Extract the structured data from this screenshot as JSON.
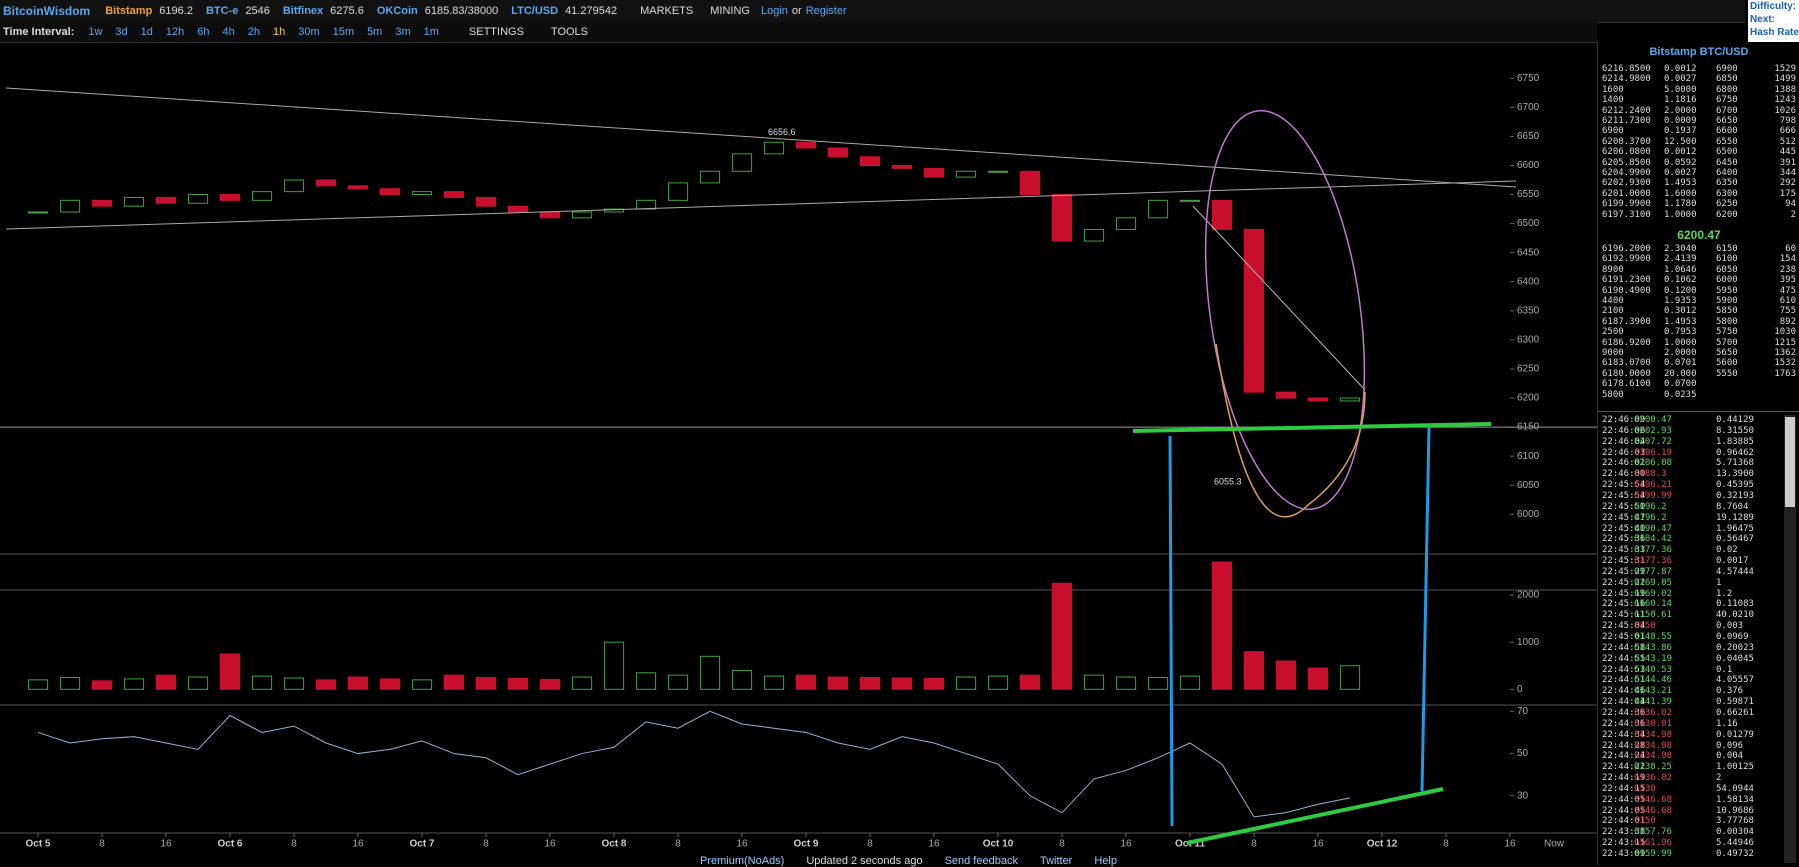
{
  "header": {
    "brand": "BitcoinWisdom",
    "tickers": [
      {
        "name": "Bitstamp",
        "price": "6196.2"
      },
      {
        "name": "BTC-e",
        "price": "2546"
      },
      {
        "name": "Bitfinex",
        "price": "6275.6"
      },
      {
        "name": "OKCoin",
        "price": "6185.83/38000"
      },
      {
        "name": "LTC/USD",
        "price": "41.279542"
      }
    ],
    "menus": [
      "MARKETS",
      "MINING"
    ],
    "login": "Login",
    "or": "or",
    "register": "Register",
    "right": [
      "Difficulty:",
      "Next:",
      "Hash Rate"
    ]
  },
  "toolbar": {
    "label": "Time Interval:",
    "intervals": [
      "1w",
      "3d",
      "1d",
      "12h",
      "6h",
      "4h",
      "2h",
      "1h",
      "30m",
      "15m",
      "5m",
      "3m",
      "1m"
    ],
    "active_interval": 7,
    "menus": [
      "SETTINGS",
      "TOOLS"
    ]
  },
  "chart_data": {
    "type": "candlestick",
    "up_color": "#3fa33f",
    "down_color": "#c8102e",
    "rsi_color": "#8fb4d8",
    "x": [
      0,
      4,
      8,
      12,
      16,
      20,
      24,
      28,
      32,
      36,
      40,
      44,
      48,
      52,
      56,
      60,
      64,
      68,
      72,
      76,
      80,
      84,
      88,
      92,
      96,
      100,
      104,
      108,
      112,
      116,
      120,
      124,
      128,
      132,
      136,
      140,
      144,
      148,
      152,
      156,
      160,
      164
    ],
    "values": [
      6520,
      6540,
      6530,
      6545,
      6535,
      6550,
      6540,
      6555,
      6575,
      6565,
      6560,
      6550,
      6555,
      6545,
      6530,
      6520,
      6510,
      6520,
      6525,
      6540,
      6570,
      6590,
      6620,
      6640,
      6630,
      6615,
      6600,
      6595,
      6580,
      6590,
      6590,
      6550,
      6470,
      6490,
      6510,
      6540,
      6540,
      6490,
      6210,
      6200,
      6195,
      6200
    ],
    "volume": [
      200,
      250,
      180,
      220,
      300,
      260,
      750,
      280,
      240,
      200,
      260,
      220,
      200,
      300,
      250,
      230,
      210,
      260,
      1000,
      350,
      300,
      700,
      400,
      280,
      300,
      260,
      250,
      240,
      230,
      260,
      280,
      300,
      2250,
      300,
      260,
      250,
      280,
      2700,
      800,
      600,
      450,
      500
    ],
    "rsi": [
      60,
      55,
      57,
      58,
      55,
      52,
      68,
      60,
      63,
      55,
      50,
      52,
      56,
      50,
      48,
      40,
      45,
      50,
      53,
      65,
      62,
      70,
      64,
      62,
      60,
      55,
      52,
      58,
      55,
      50,
      45,
      30,
      22,
      38,
      42,
      48,
      55,
      45,
      20,
      22,
      26,
      29
    ],
    "xlim": [
      -4.75,
      190.25
    ],
    "xticks": [
      {
        "value": 0,
        "label": "Oct 5"
      },
      8,
      16,
      {
        "value": 24,
        "label": "Oct 6"
      },
      {
        "value": 32,
        "label": "8"
      },
      {
        "value": 40,
        "label": "16"
      },
      {
        "value": 48,
        "label": "Oct 7"
      },
      {
        "value": 56,
        "label": "8"
      },
      {
        "value": 64,
        "label": "16"
      },
      {
        "value": 72,
        "label": "Oct 8"
      },
      {
        "value": 80,
        "label": "8"
      },
      {
        "value": 88,
        "label": "16"
      },
      {
        "value": 96,
        "label": "Oct 9"
      },
      {
        "value": 104,
        "label": "8"
      },
      {
        "value": 112,
        "label": "16"
      },
      {
        "value": 120,
        "label": "Oct 10"
      },
      {
        "value": 128,
        "label": "8"
      },
      {
        "value": 136,
        "label": "16"
      },
      {
        "value": 144,
        "label": "Oct 11"
      },
      {
        "value": 152,
        "label": "8"
      },
      {
        "value": 160,
        "label": "16"
      },
      {
        "value": 168,
        "label": "Oct 12"
      },
      {
        "value": 176,
        "label": "8"
      },
      {
        "value": 184,
        "label": "16"
      }
    ],
    "now_label": "Now",
    "ylim": [
      5930,
      6790
    ],
    "yticks": [
      6000,
      6050,
      6100,
      6150,
      6200,
      6250,
      6300,
      6350,
      6400,
      6450,
      6500,
      6550,
      6600,
      6650,
      6700,
      6750
    ],
    "horizontal_line": 6150,
    "volume_ylim": [
      -100,
      2850
    ],
    "volume_yticks": [
      0,
      1000,
      2000
    ],
    "rsi_ylim": [
      10,
      73
    ],
    "rsi_yticks": [
      30,
      50,
      70
    ],
    "annotations": [
      6656.6,
      6055.3
    ]
  },
  "order_book": {
    "title": "Bitstamp BTC/USD",
    "asks": [
      [
        "6216.8500",
        "0.0012",
        "6900",
        "1529"
      ],
      [
        "6214.9800",
        "0.0027",
        "6850",
        "1499"
      ],
      [
        "1600",
        "5.0000",
        "6800",
        "1388"
      ],
      [
        "1400",
        "1.1816",
        "6750",
        "1243"
      ],
      [
        "6212.2400",
        "2.0000",
        "6700",
        "1026"
      ],
      [
        "6211.7300",
        "0.0009",
        "6650",
        "798"
      ],
      [
        "6900",
        "0.1937",
        "6600",
        "666"
      ],
      [
        "6208.3700",
        "12.500",
        "6550",
        "512"
      ],
      [
        "6206.0800",
        "0.0012",
        "6500",
        "445"
      ],
      [
        "6205.8500",
        "0.0592",
        "6450",
        "391"
      ],
      [
        "6204.9900",
        "0.0027",
        "6400",
        "344"
      ],
      [
        "6202.9300",
        "1.4953",
        "6350",
        "292"
      ],
      [
        "6201.0000",
        "1.6000",
        "6300",
        "175"
      ],
      [
        "6199.9900",
        "1.1780",
        "6250",
        "94"
      ],
      [
        "6197.3100",
        "1.0000",
        "6200",
        "2"
      ]
    ],
    "last": "6200.47",
    "bids": [
      [
        "6196.2000",
        "2.3040",
        "6150",
        "60"
      ],
      [
        "6192.9900",
        "2.4139",
        "6100",
        "154"
      ],
      [
        "8900",
        "1.0646",
        "6050",
        "238"
      ],
      [
        "6191.2300",
        "0.1062",
        "6000",
        "395"
      ],
      [
        "6190.4900",
        "0.1200",
        "5950",
        "475"
      ],
      [
        "4400",
        "1.9353",
        "5900",
        "610"
      ],
      [
        "2100",
        "0.3012",
        "5850",
        "755"
      ],
      [
        "6187.3900",
        "1.4953",
        "5800",
        "892"
      ],
      [
        "2500",
        "0.7953",
        "5750",
        "1030"
      ],
      [
        "6186.9200",
        "1.0000",
        "5700",
        "1215"
      ],
      [
        "9000",
        "2.0000",
        "5650",
        "1362"
      ],
      [
        "6183.0700",
        "0.0701",
        "5600",
        "1532"
      ],
      [
        "6180.0000",
        "20.000",
        "5550",
        "1763"
      ],
      [
        "6178.6100",
        "0.0700"
      ],
      [
        "5800",
        "0.0235"
      ]
    ]
  },
  "trades": [
    [
      "22:46:09",
      "6200.47",
      "0.44129",
      "#5fd35f"
    ],
    [
      "22:46:06",
      "6202.93",
      "8.31550",
      "#5fd35f"
    ],
    [
      "22:46:04",
      "6207.72",
      "1.83885",
      "#5fd35f"
    ],
    [
      "22:46:03",
      "6196.19",
      "0.96462",
      "#e0455a"
    ],
    [
      "22:46:01",
      "6206.08",
      "5.71368",
      "#5fd35f"
    ],
    [
      "22:46:00",
      "6188.3",
      "13.3900",
      "#e0455a"
    ],
    [
      "22:45:54",
      "6196.21",
      "0.45395",
      "#e0455a"
    ],
    [
      "22:45:54",
      "6199.99",
      "0.32193",
      "#e0455a"
    ],
    [
      "22:45:50",
      "6196.2",
      "8.7604",
      "#5fd35f"
    ],
    [
      "22:45:47",
      "6196.2",
      "19.1289",
      "#5fd35f"
    ],
    [
      "22:45:40",
      "6190.47",
      "1.96475",
      "#5fd35f"
    ],
    [
      "22:45:36",
      "6184.42",
      "0.56467",
      "#5fd35f"
    ],
    [
      "22:45:33",
      "6177.36",
      "0.02",
      "#5fd35f"
    ],
    [
      "22:45:31",
      "6177.36",
      "0.0017",
      "#e0455a"
    ],
    [
      "22:45:29",
      "6177.87",
      "4.57444",
      "#5fd35f"
    ],
    [
      "22:45:22",
      "6169.05",
      "1",
      "#5fd35f"
    ],
    [
      "22:45:19",
      "6169.02",
      "1.2",
      "#5fd35f"
    ],
    [
      "22:45:16",
      "6160.14",
      "0.11083",
      "#5fd35f"
    ],
    [
      "22:45:11",
      "6150.61",
      "40.0210",
      "#5fd35f"
    ],
    [
      "22:45:04",
      "6150",
      "0.003",
      "#e0455a"
    ],
    [
      "22:45:01",
      "6148.55",
      "0.0969",
      "#5fd35f"
    ],
    [
      "22:44:58",
      "6143.86",
      "0.20023",
      "#5fd35f"
    ],
    [
      "22:44:55",
      "6143.19",
      "0.04045",
      "#5fd35f"
    ],
    [
      "22:44:53",
      "6140.53",
      "0.1",
      "#5fd35f"
    ],
    [
      "22:44:51",
      "6144.46",
      "4.05557",
      "#5fd35f"
    ],
    [
      "22:44:46",
      "6143.21",
      "0.376",
      "#5fd35f"
    ],
    [
      "22:44:44",
      "6141.39",
      "0.59871",
      "#5fd35f"
    ],
    [
      "22:44:36",
      "6136.02",
      "0.66261",
      "#e0455a"
    ],
    [
      "22:44:36",
      "6130.01",
      "1.16",
      "#e0455a"
    ],
    [
      "22:44:34",
      "6134.98",
      "0.01279",
      "#e0455a"
    ],
    [
      "22:44:28",
      "6134.98",
      "0.096",
      "#e0455a"
    ],
    [
      "22:44:24",
      "6134.98",
      "0.004",
      "#e0455a"
    ],
    [
      "22:44:22",
      "6138.25",
      "1.00125",
      "#5fd35f"
    ],
    [
      "22:44:19",
      "6136.02",
      "2",
      "#e0455a"
    ],
    [
      "22:44:15",
      "6130",
      "54.0944",
      "#e0455a"
    ],
    [
      "22:44:05",
      "6146.68",
      "1.58134",
      "#e0455a"
    ],
    [
      "22:44:05",
      "6146.68",
      "10.9686",
      "#e0455a"
    ],
    [
      "22:44:01",
      "6150",
      "3.77768",
      "#e0455a"
    ],
    [
      "22:43:38",
      "6157.76",
      "0.00304",
      "#5fd35f"
    ],
    [
      "22:43:15",
      "6161.96",
      "5.44946",
      "#e0455a"
    ],
    [
      "22:43:09",
      "6159.99",
      "0.49732",
      "#5fd35f"
    ]
  ],
  "footer": [
    "Premium(NoAds)",
    "Updated 2 seconds ago",
    "Send feedback",
    "Twitter",
    "Help"
  ]
}
